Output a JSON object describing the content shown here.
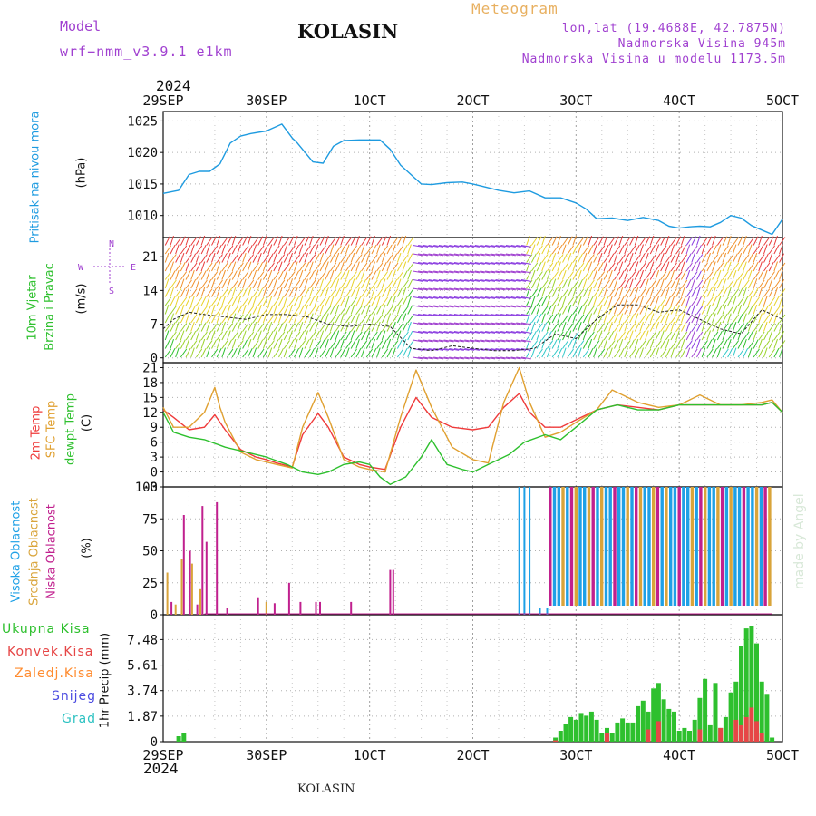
{
  "header": {
    "model_label": "Model",
    "model_name": "wrf−nmm_v3.9.1  e1km",
    "station": "KOLASIN",
    "meteogram_label": "Meteogram",
    "lonlat": "lon,lat (19.4688E, 42.7875N)",
    "altitude": "Nadmorska Visina 945m",
    "model_altitude": "Nadmorska Visina u modelu 1173.5m",
    "watermark": "made by Angel",
    "footer_station": "KOLASIN"
  },
  "colors": {
    "pressure": "#1e9be0",
    "temp2m": "#ef3a3a",
    "sfc": "#e0a030",
    "dewpt": "#2ec02e",
    "high_cloud": "#1ea0e6",
    "mid_cloud": "#d9a43a",
    "low_cloud": "#c0208e",
    "total_precip": "#2ec02e",
    "conv_precip": "#e64646",
    "freezing": "#ff8c30",
    "snow": "#4a4ae0",
    "hail": "#2ec2c2",
    "wind_label": "#2ec02e",
    "purple": "#a040d0"
  },
  "time_axis": {
    "year": "2024",
    "ticks": [
      "29SEP",
      "30SEP",
      "1OCT",
      "2OCT",
      "3OCT",
      "4OCT",
      "5OCT"
    ]
  },
  "labels": {
    "pressure": [
      "Pritisak na nivou mora",
      "(hPa)"
    ],
    "wind": [
      "10m Vjetar",
      "Brzina i Pravac",
      "(m/s)"
    ],
    "compass": [
      "N",
      "W",
      "E",
      "S"
    ],
    "temperature": [
      "2m Temp",
      "SFC Temp",
      "dewpt Temp",
      "(C)"
    ],
    "cloud": [
      "Visoka Oblacnost",
      "Srednja Oblacnost",
      "Niska Oblacnost",
      "(%)"
    ],
    "precip_axis": "1hr Precip (mm)",
    "precip_legend": [
      "Ukupna Kisa",
      "Konvek.Kisa",
      "Zaledj.Kisa",
      "Snijeg",
      "Grad"
    ]
  },
  "chart_data": [
    {
      "type": "line",
      "panel": "pressure",
      "x_unit": "days since 29SEP 00UTC",
      "xlim": [
        0,
        6
      ],
      "ylim": [
        1006.5,
        1026.5
      ],
      "yticks": [
        1010,
        1015,
        1020,
        1025
      ],
      "series": [
        {
          "name": "Pritisak na nivou mora",
          "x": [
            0,
            0.15,
            0.25,
            0.35,
            0.45,
            0.55,
            0.65,
            0.75,
            0.85,
            1.0,
            1.15,
            1.25,
            1.3,
            1.45,
            1.55,
            1.65,
            1.75,
            1.9,
            2.0,
            2.1,
            2.2,
            2.3,
            2.4,
            2.5,
            2.6,
            2.75,
            2.9,
            3.0,
            3.1,
            3.25,
            3.4,
            3.55,
            3.7,
            3.85,
            4.0,
            4.1,
            4.2,
            4.35,
            4.5,
            4.65,
            4.8,
            4.9,
            5.0,
            5.1,
            5.2,
            5.3,
            5.4,
            5.5,
            5.6,
            5.7,
            5.8,
            5.9,
            6.0
          ],
          "values": [
            1013.5,
            1014,
            1016.5,
            1017,
            1017,
            1018.2,
            1021.5,
            1022.6,
            1023,
            1023.4,
            1024.5,
            1022.3,
            1021.5,
            1018.5,
            1018.3,
            1021,
            1021.9,
            1022,
            1022,
            1022,
            1020.5,
            1018,
            1016.5,
            1015,
            1014.9,
            1015.2,
            1015.3,
            1015,
            1014.6,
            1014,
            1013.6,
            1013.9,
            1012.8,
            1012.8,
            1012,
            1011,
            1009.5,
            1009.6,
            1009.2,
            1009.7,
            1009.2,
            1008.3,
            1008,
            1008.2,
            1008.3,
            1008.2,
            1008.9,
            1010,
            1009.6,
            1008.4,
            1007.7,
            1007,
            1009.4
          ]
        }
      ]
    },
    {
      "type": "line",
      "panel": "wind",
      "x_unit": "days since 29SEP 00UTC",
      "xlim": [
        0,
        6
      ],
      "ylim": [
        -1,
        25
      ],
      "yticks": [
        0,
        7,
        14,
        21
      ],
      "series": [
        {
          "name": "wind speed (thin line)",
          "x": [
            0,
            0.1,
            0.25,
            0.4,
            0.6,
            0.8,
            1.0,
            1.2,
            1.4,
            1.6,
            1.8,
            2.0,
            2.2,
            2.4,
            2.6,
            2.8,
            3.0,
            3.2,
            3.4,
            3.6,
            3.8,
            4.0,
            4.2,
            4.4,
            4.6,
            4.8,
            5.0,
            5.2,
            5.4,
            5.6,
            5.8,
            6.0
          ],
          "values": [
            6,
            8,
            9.5,
            9,
            8.5,
            8,
            9,
            9,
            8.5,
            7,
            6.5,
            7,
            6.5,
            2,
            1.5,
            2.5,
            2,
            1.5,
            1.5,
            2,
            5,
            4,
            8,
            11,
            11,
            9.5,
            10,
            8,
            6,
            5,
            10,
            8
          ]
        }
      ],
      "barb_color_scale": "speed: green (low) -> yellow -> red (high); purple for northerly/westerly sector"
    },
    {
      "type": "line",
      "panel": "temperature",
      "x_unit": "days since 29SEP 00UTC",
      "xlim": [
        0,
        6
      ],
      "ylim": [
        -3,
        22
      ],
      "yticks": [
        -3,
        0,
        3,
        6,
        9,
        12,
        15,
        18,
        21
      ],
      "series": [
        {
          "name": "2m Temp",
          "x": [
            0,
            0.1,
            0.25,
            0.4,
            0.5,
            0.6,
            0.75,
            0.9,
            1.0,
            1.1,
            1.25,
            1.35,
            1.5,
            1.6,
            1.75,
            1.9,
            2.0,
            2.15,
            2.3,
            2.45,
            2.6,
            2.8,
            3.0,
            3.15,
            3.3,
            3.45,
            3.55,
            3.7,
            3.85,
            4.0,
            4.2,
            4.4,
            4.6,
            4.8,
            5.0,
            5.2,
            5.4,
            5.6,
            5.8,
            5.9,
            6.0
          ],
          "values": [
            12.5,
            11,
            8.5,
            9,
            11.5,
            8.5,
            4.5,
            3,
            2.5,
            1.8,
            1,
            7.5,
            11.8,
            9,
            3,
            1.5,
            1,
            0.5,
            9,
            15,
            11,
            9,
            8.5,
            9,
            13,
            15.8,
            12,
            9,
            9,
            10.5,
            12.5,
            13.5,
            13,
            12.5,
            13.5,
            13.5,
            13.5,
            13.5,
            13.5,
            14,
            12
          ]
        },
        {
          "name": "SFC Temp",
          "x": [
            0,
            0.1,
            0.25,
            0.4,
            0.5,
            0.55,
            0.6,
            0.75,
            0.9,
            1.0,
            1.1,
            1.25,
            1.35,
            1.5,
            1.6,
            1.75,
            1.9,
            2.0,
            2.15,
            2.3,
            2.45,
            2.6,
            2.8,
            3.0,
            3.15,
            3.3,
            3.45,
            3.55,
            3.7,
            3.85,
            4.0,
            4.2,
            4.35,
            4.6,
            4.8,
            5.0,
            5.2,
            5.4,
            5.6,
            5.8,
            5.9,
            6.0
          ],
          "values": [
            13,
            9,
            9,
            12,
            17,
            13,
            10,
            4,
            2.5,
            2,
            1.5,
            0.8,
            9,
            16,
            11,
            2.5,
            1,
            0.5,
            0,
            11,
            20.5,
            13,
            5,
            2.5,
            1.8,
            14,
            21,
            14,
            7,
            8,
            10,
            12.5,
            16.5,
            14,
            13,
            13.5,
            15.5,
            13.5,
            13.5,
            14,
            14.5,
            12
          ]
        },
        {
          "name": "dewpt Temp",
          "x": [
            0,
            0.1,
            0.25,
            0.4,
            0.6,
            0.8,
            1.0,
            1.2,
            1.35,
            1.5,
            1.6,
            1.75,
            1.9,
            2.0,
            2.1,
            2.2,
            2.35,
            2.5,
            2.6,
            2.75,
            2.9,
            3.0,
            3.15,
            3.35,
            3.5,
            3.7,
            3.85,
            4.0,
            4.2,
            4.4,
            4.6,
            4.8,
            5.0,
            5.2,
            5.4,
            5.6,
            5.8,
            5.9,
            6.0
          ],
          "values": [
            12,
            8,
            7,
            6.5,
            5,
            4,
            3,
            1.5,
            0,
            -0.5,
            0,
            1.5,
            2,
            1.5,
            -1,
            -2.5,
            -1,
            3,
            6.5,
            1.5,
            0.5,
            0,
            1.5,
            3.5,
            6,
            7.5,
            6.5,
            9,
            12.5,
            13.5,
            12.5,
            12.5,
            13.5,
            13.5,
            13.5,
            13.5,
            13.5,
            14,
            12
          ]
        }
      ]
    },
    {
      "type": "bar",
      "panel": "cloud",
      "x_unit": "days since 29SEP 00UTC",
      "xlim": [
        0,
        6
      ],
      "ylim": [
        0,
        100
      ],
      "yticks": [
        0,
        25,
        50,
        75,
        100
      ],
      "series": [
        {
          "name": "Niska Oblacnost",
          "x": [
            0.08,
            0.2,
            0.26,
            0.33,
            0.38,
            0.42,
            0.52,
            0.62,
            0.92,
            1.08,
            1.22,
            1.33,
            1.48,
            1.52,
            1.82,
            2.2,
            2.23
          ],
          "values": [
            10,
            78,
            50,
            8,
            85,
            57,
            88,
            5,
            13,
            9,
            25,
            10,
            10,
            10,
            10,
            35,
            35
          ]
        },
        {
          "name": "Srednja Oblacnost",
          "x": [
            0.04,
            0.12,
            0.18,
            0.28,
            0.36,
            1.0
          ],
          "values": [
            33,
            8,
            44,
            40,
            20,
            10
          ]
        },
        {
          "name": "Visoka Oblacnost",
          "x": [
            3.45,
            3.5,
            3.55,
            3.65,
            3.72
          ],
          "values": [
            100,
            100,
            100,
            5,
            5
          ],
          "note": "nearly continuous 100% high/mid cloud bars from about day 3.75 to day 5.9"
        }
      ]
    },
    {
      "type": "bar",
      "panel": "precip",
      "x_unit": "days since 29SEP 00UTC",
      "xlim": [
        0,
        6
      ],
      "ylim": [
        0,
        9.3
      ],
      "yticks": [
        0,
        1.87,
        3.74,
        5.61,
        7.48
      ],
      "series": [
        {
          "name": "Ukupna Kisa",
          "x": [
            0.15,
            0.2,
            3.8,
            3.85,
            3.9,
            3.95,
            4.0,
            4.05,
            4.1,
            4.15,
            4.2,
            4.25,
            4.3,
            4.35,
            4.4,
            4.45,
            4.5,
            4.55,
            4.6,
            4.65,
            4.7,
            4.75,
            4.8,
            4.85,
            4.9,
            4.95,
            5.0,
            5.05,
            5.1,
            5.15,
            5.2,
            5.25,
            5.3,
            5.35,
            5.4,
            5.45,
            5.5,
            5.55,
            5.6,
            5.65,
            5.7,
            5.75,
            5.8,
            5.85,
            5.9
          ],
          "values": [
            0.4,
            0.6,
            0.3,
            0.8,
            1.3,
            1.8,
            1.6,
            2.1,
            1.9,
            2.2,
            1.6,
            0.6,
            1.0,
            0.6,
            1.4,
            1.7,
            1.4,
            1.4,
            2.6,
            3.0,
            2.2,
            3.9,
            4.3,
            3.1,
            2.4,
            2.2,
            0.8,
            1.0,
            0.8,
            1.6,
            3.2,
            4.6,
            1.2,
            4.3,
            1.0,
            1.8,
            3.6,
            4.4,
            7.0,
            8.3,
            8.5,
            7.2,
            4.4,
            3.5,
            0.3
          ]
        },
        {
          "name": "Konvek.Kisa",
          "x": [
            3.8,
            4.3,
            4.7,
            4.8,
            5.2,
            5.4,
            5.55,
            5.6,
            5.65,
            5.7,
            5.75,
            5.8
          ],
          "values": [
            0.1,
            0.6,
            0.9,
            1.5,
            0.9,
            1.0,
            1.6,
            1.2,
            1.8,
            2.5,
            1.5,
            0.6
          ]
        },
        {
          "name": "Zaledj.Kisa",
          "x": [],
          "values": []
        },
        {
          "name": "Snijeg",
          "x": [],
          "values": []
        },
        {
          "name": "Grad",
          "x": [],
          "values": []
        }
      ]
    }
  ]
}
